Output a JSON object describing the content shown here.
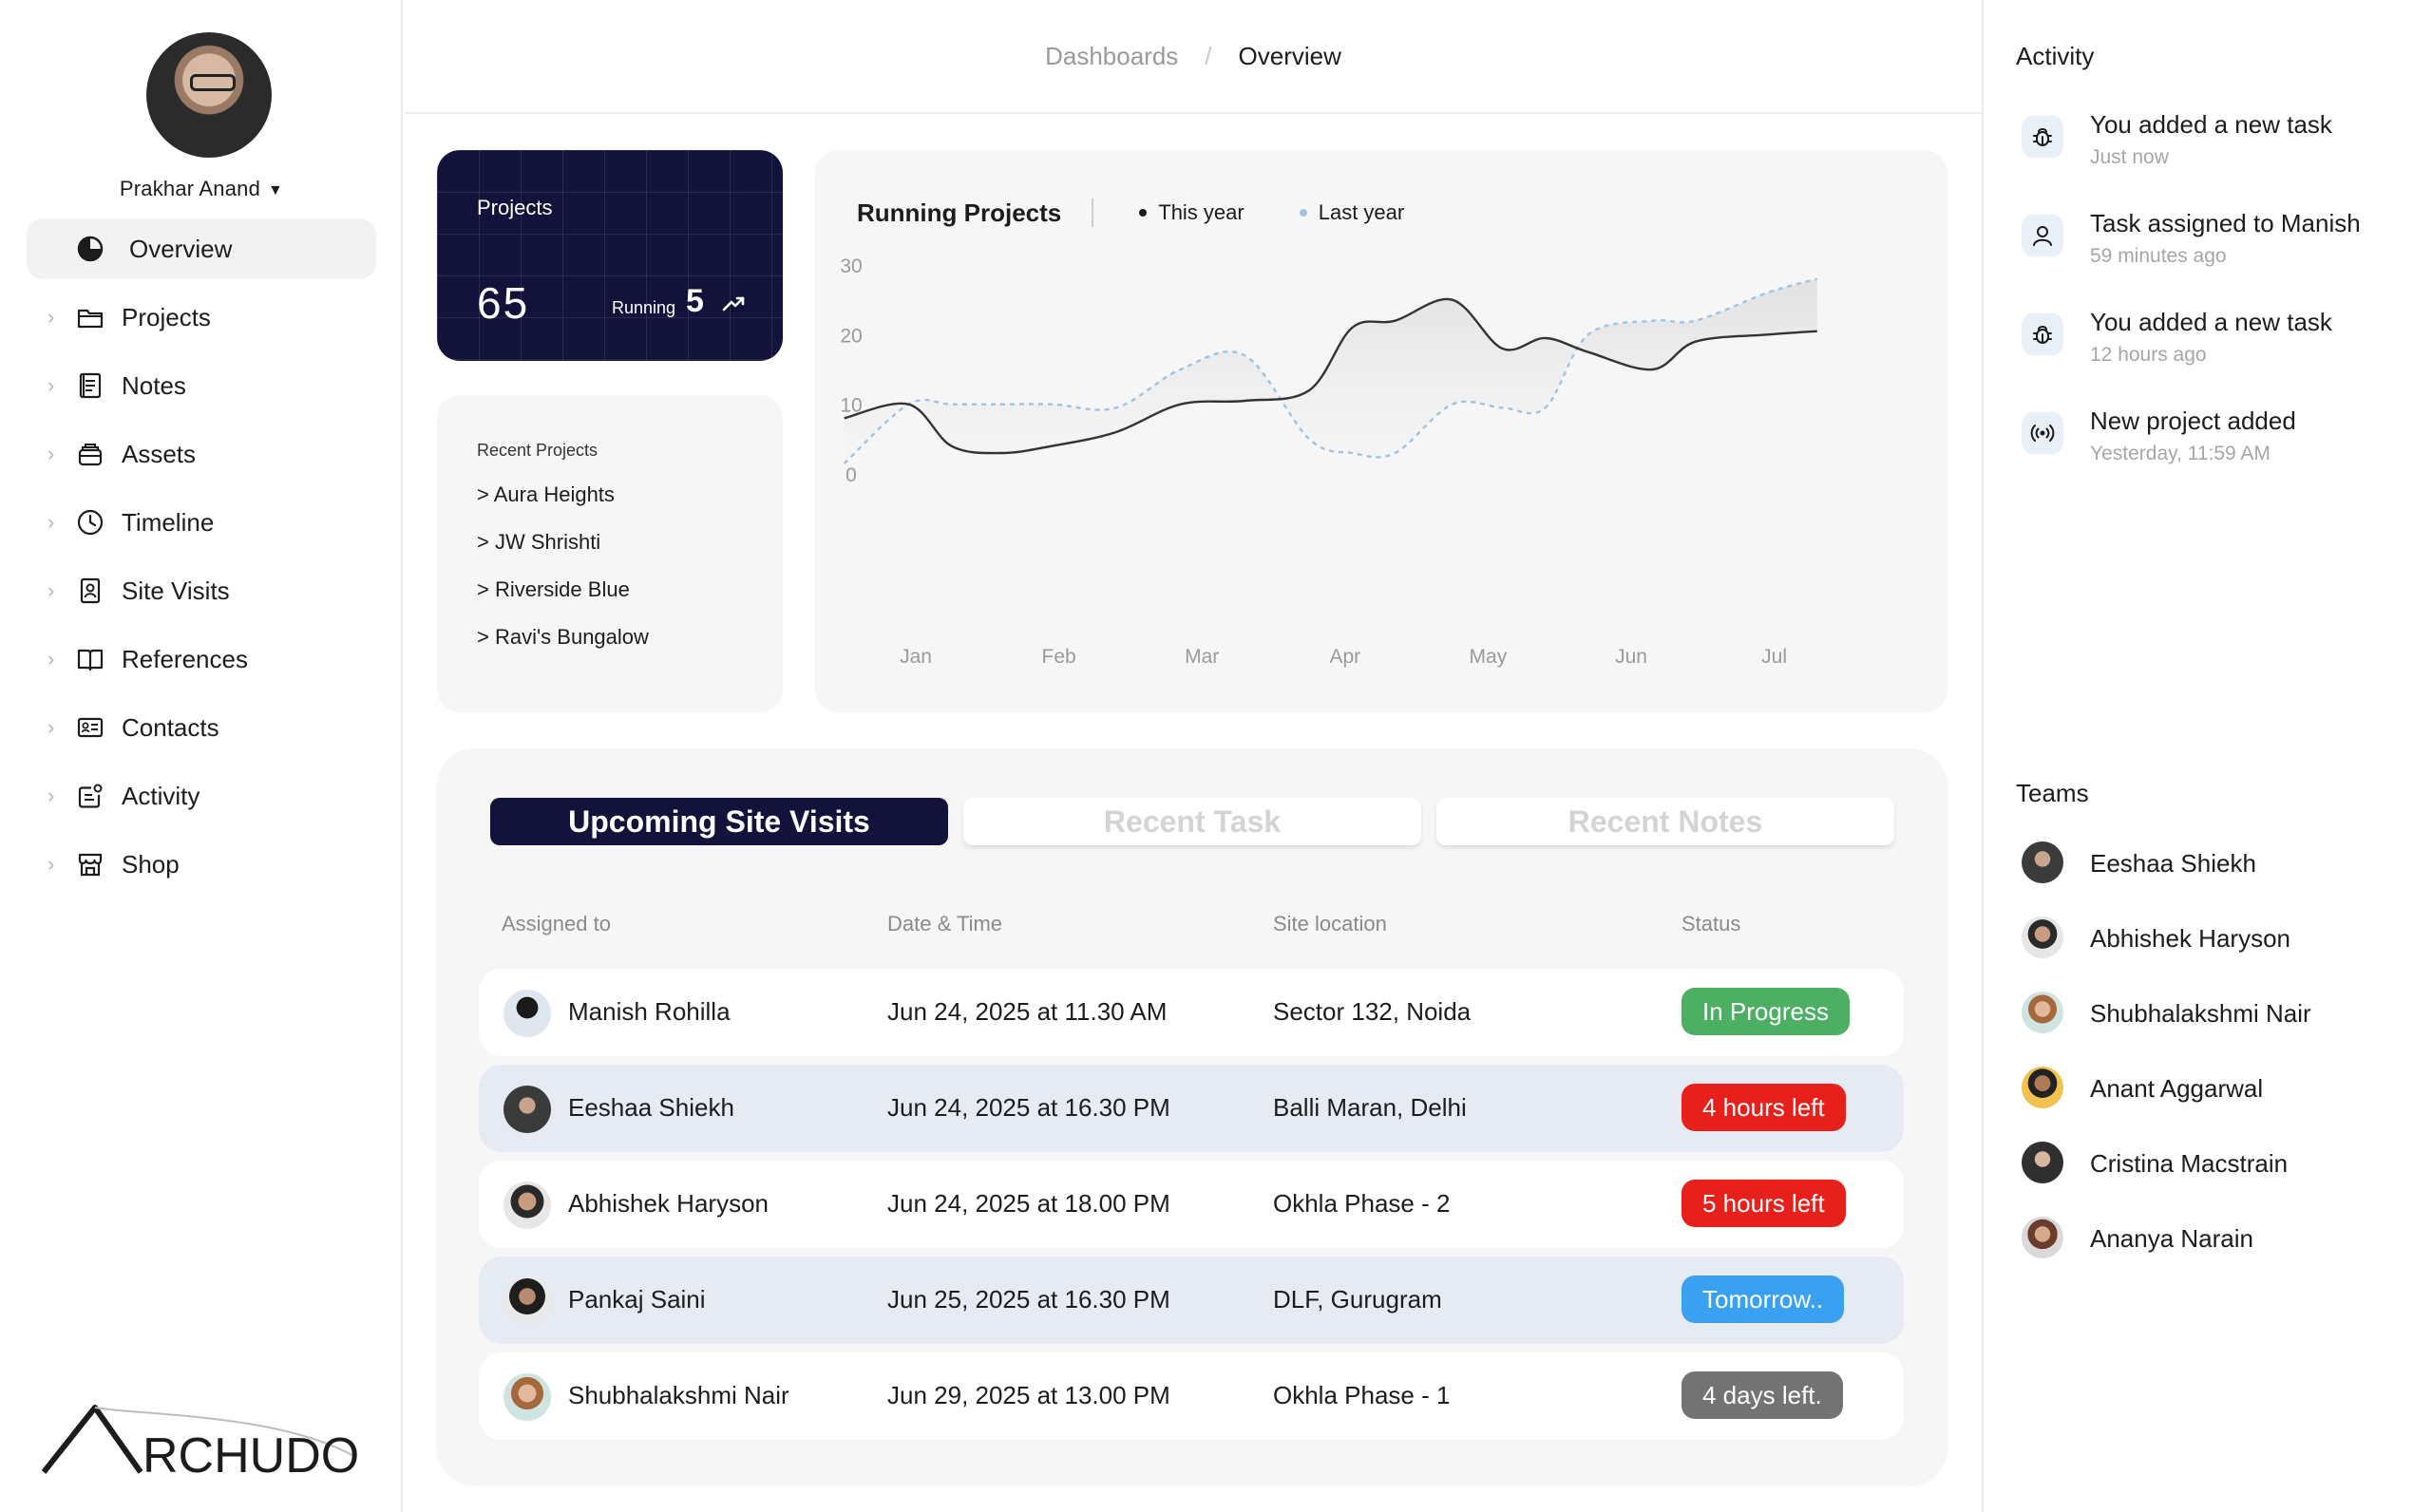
{
  "user": {
    "name": "Prakhar Anand"
  },
  "nav": [
    {
      "label": "Overview",
      "icon": "pie-chart-icon",
      "active": true
    },
    {
      "label": "Projects",
      "icon": "folder-icon"
    },
    {
      "label": "Notes",
      "icon": "notes-icon"
    },
    {
      "label": "Assets",
      "icon": "assets-icon"
    },
    {
      "label": "Timeline",
      "icon": "clock-icon"
    },
    {
      "label": "Site Visits",
      "icon": "badge-icon"
    },
    {
      "label": "References",
      "icon": "book-icon"
    },
    {
      "label": "Contacts",
      "icon": "contact-card-icon"
    },
    {
      "label": "Activity",
      "icon": "activity-icon"
    },
    {
      "label": "Shop",
      "icon": "store-icon"
    }
  ],
  "logo": {
    "text": "RCHUDO"
  },
  "breadcrumb": {
    "parent": "Dashboards",
    "separator": "/",
    "current": "Overview"
  },
  "projects_card": {
    "title": "Projects",
    "count": "65",
    "running_label": "Running",
    "running_count": "5"
  },
  "recent_projects": {
    "title": "Recent Projects",
    "items": [
      "> Aura Heights",
      "> JW Shrishti",
      "> Riverside Blue",
      "> Ravi's Bungalow"
    ]
  },
  "chart_data": {
    "type": "line",
    "title": "Running Projects",
    "categories": [
      "Jan",
      "Feb",
      "Mar",
      "Apr",
      "May",
      "Jun",
      "Jul"
    ],
    "yticks": [
      "0",
      "10",
      "20",
      "30"
    ],
    "ylim": [
      0,
      30
    ],
    "grid": false,
    "legend_placement": "top",
    "x": [
      -0.5,
      -0.05,
      0.25,
      0.6,
      0.95,
      1.4,
      1.85,
      2.3,
      2.75,
      3.05,
      3.35,
      3.75,
      4.1,
      4.4,
      4.7,
      5.15,
      5.45,
      5.95,
      6.3
    ],
    "series": [
      {
        "name": "This year",
        "color": "#1c1c1c",
        "style": "solid",
        "values": [
          8,
          10,
          4,
          3,
          4,
          6,
          10,
          10.5,
          12,
          21,
          22,
          25,
          18,
          19.5,
          17.5,
          15,
          19,
          20,
          20.5
        ]
      },
      {
        "name": "Last year",
        "color": "#9cc3e6",
        "style": "dashed",
        "values": [
          1.5,
          10,
          10,
          10,
          10,
          9.5,
          15,
          17,
          5,
          3,
          3,
          10,
          9.5,
          9.5,
          20,
          22,
          22,
          26,
          28
        ]
      }
    ]
  },
  "tabs": [
    "Upcoming Site Visits",
    "Recent Task",
    "Recent Notes"
  ],
  "table": {
    "columns": [
      "Assigned to",
      "Date & Time",
      "Site location",
      "Status"
    ],
    "rows": [
      {
        "name": "Manish Rohilla",
        "datetime": "Jun 24, 2025 at 11.30 AM",
        "location": "Sector 132, Noida",
        "status": "In Progress",
        "status_color": "#4caf63",
        "alt": false
      },
      {
        "name": "Eeshaa Shiekh",
        "datetime": "Jun 24, 2025 at 16.30 PM",
        "location": "Balli Maran, Delhi",
        "status": "4 hours left",
        "status_color": "#e8201c",
        "alt": true
      },
      {
        "name": "Abhishek Haryson",
        "datetime": "Jun 24, 2025 at 18.00 PM",
        "location": "Okhla Phase - 2",
        "status": "5 hours left",
        "status_color": "#e8201c",
        "alt": false
      },
      {
        "name": "Pankaj Saini",
        "datetime": "Jun 25, 2025 at 16.30 PM",
        "location": "DLF, Gurugram",
        "status": "Tomorrow..",
        "status_color": "#3aa0f2",
        "alt": true
      },
      {
        "name": "Shubhalakshmi Nair",
        "datetime": "Jun 29, 2025 at 13.00 PM",
        "location": "Okhla Phase - 1",
        "status": "4 days left.",
        "status_color": "#737373",
        "alt": false
      }
    ]
  },
  "activity": {
    "title": "Activity",
    "items": [
      {
        "title": "You added a new task",
        "time": "Just now",
        "icon": "bug-icon"
      },
      {
        "title": "Task assigned to Manish",
        "time": "59 minutes ago",
        "icon": "user-icon"
      },
      {
        "title": "You added a new task",
        "time": "12 hours ago",
        "icon": "bug-icon"
      },
      {
        "title": "New project added",
        "time": "Yesterday, 11:59 AM",
        "icon": "broadcast-icon"
      }
    ]
  },
  "teams": {
    "title": "Teams",
    "members": [
      "Eeshaa Shiekh",
      "Abhishek Haryson",
      "Shubhalakshmi Nair",
      "Anant Aggarwal",
      "Cristina Macstrain",
      "Ananya Narain"
    ]
  }
}
